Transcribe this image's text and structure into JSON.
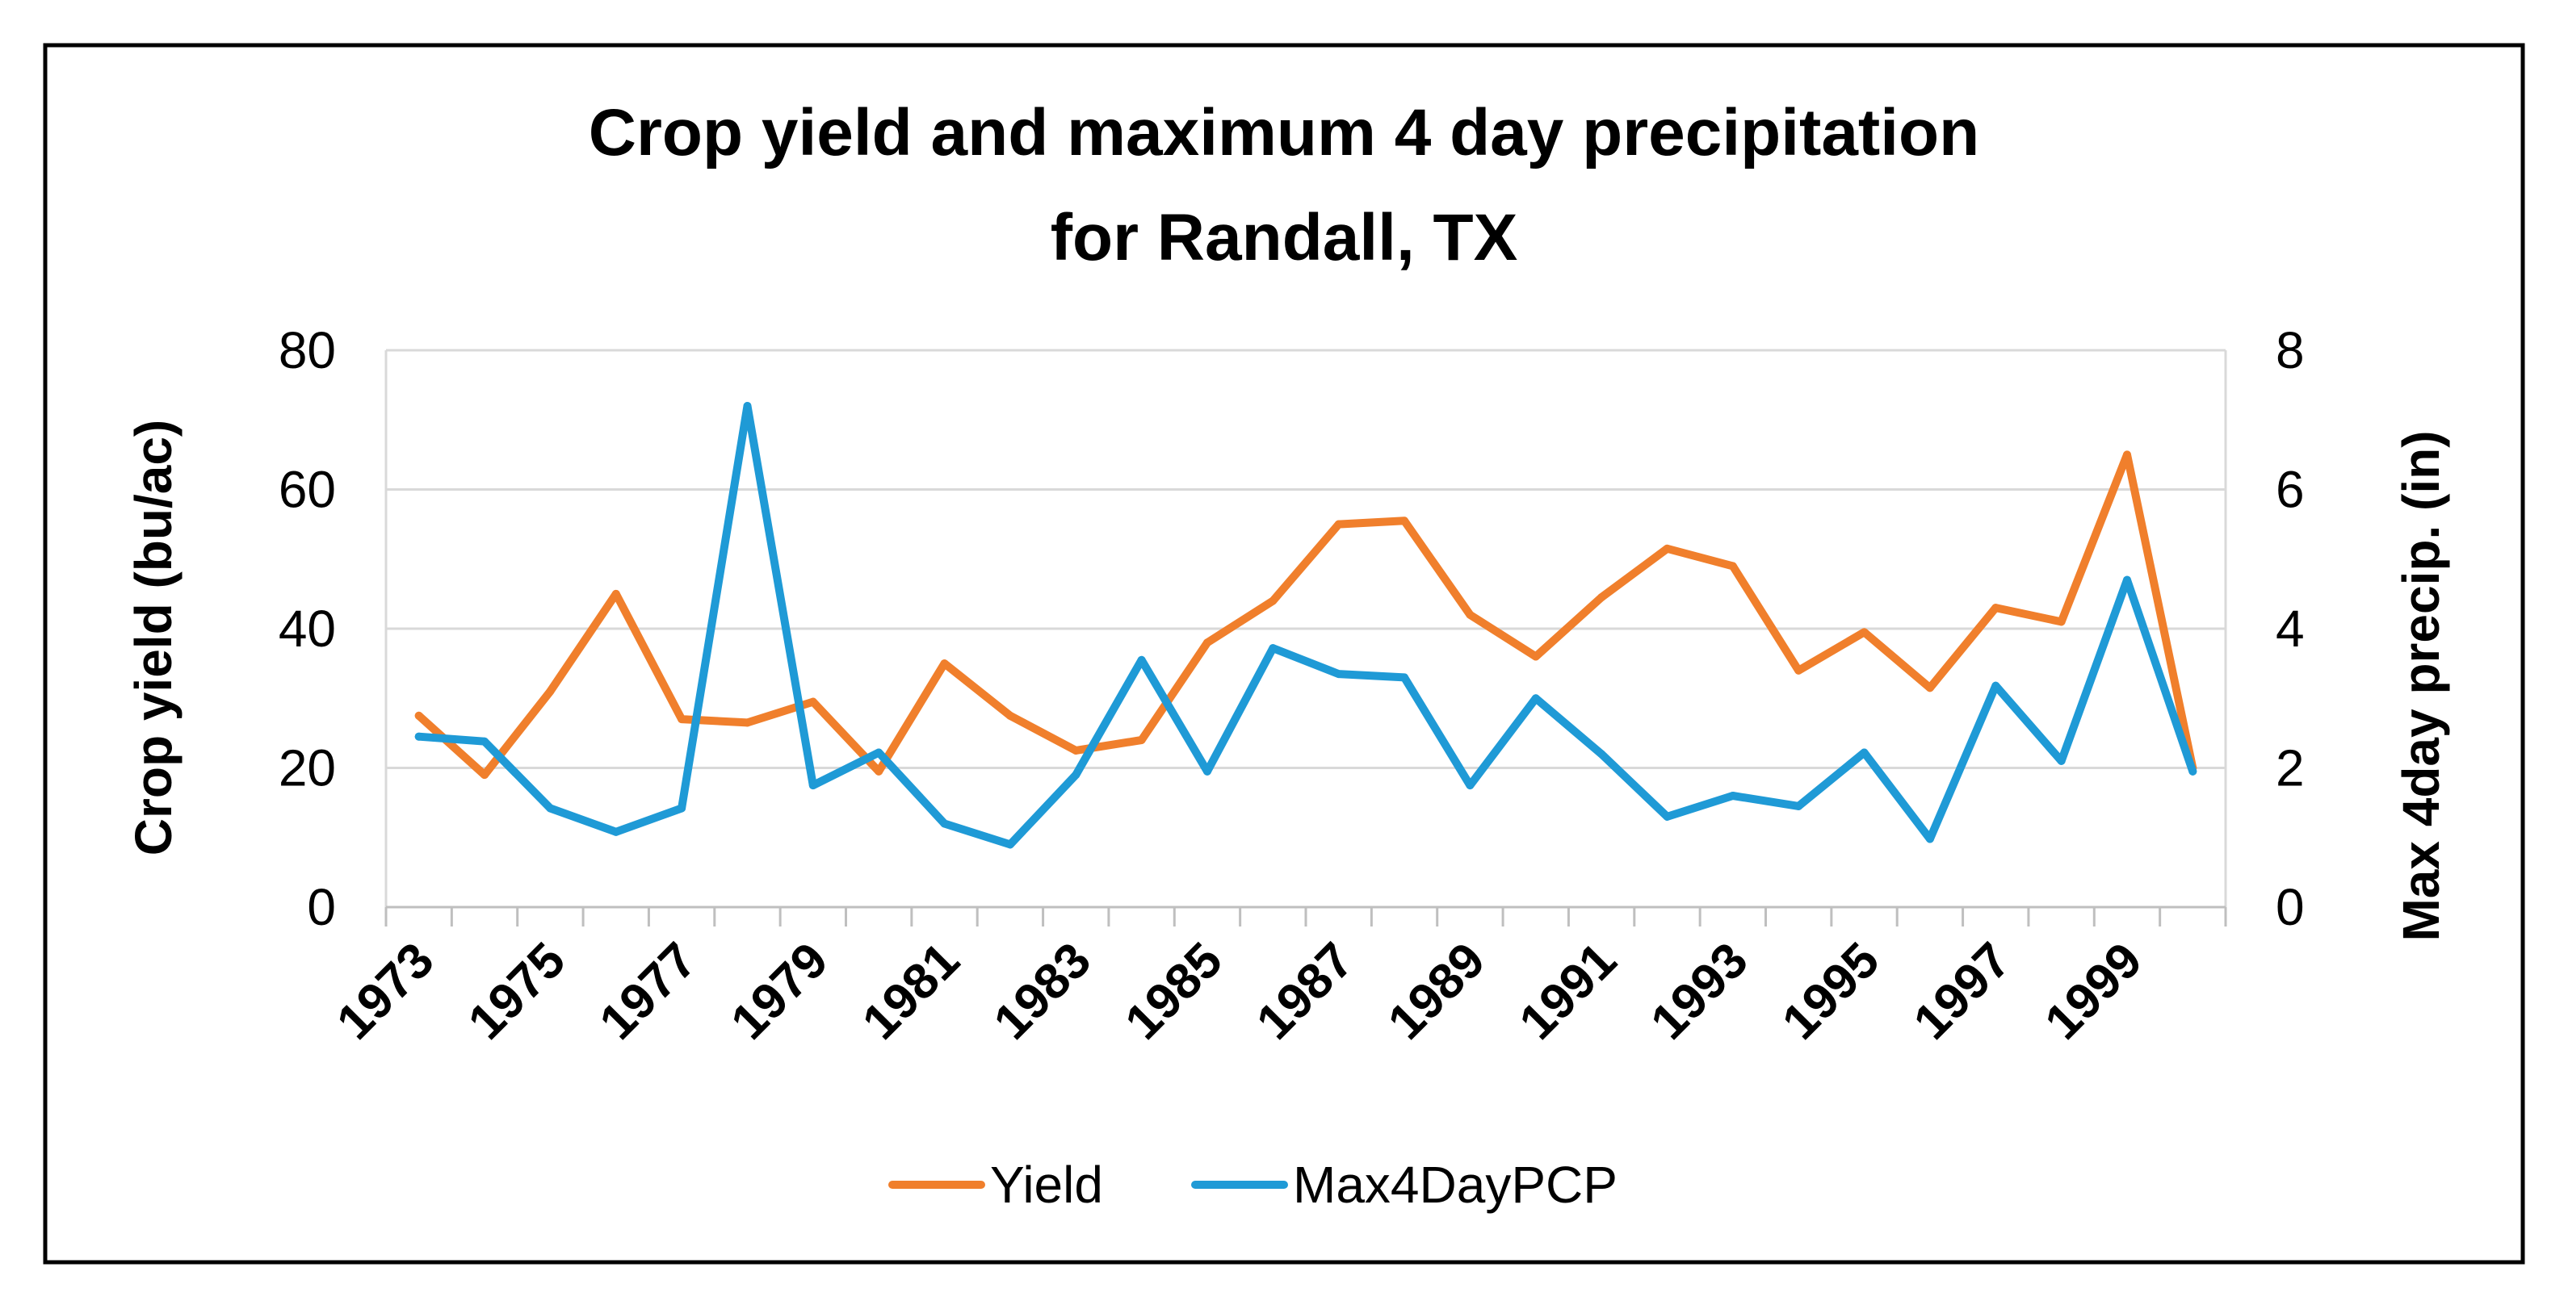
{
  "chart_data": {
    "type": "line",
    "title_lines": [
      "Crop yield and maximum 4 day precipitation",
      "for Randall, TX"
    ],
    "ylabel": "Crop yield (bu/ac)",
    "y2label": "Max 4day precip. (in)",
    "ylim": [
      0,
      80
    ],
    "y2lim": [
      0,
      8
    ],
    "yticks": [
      "0",
      "20",
      "40",
      "60",
      "80"
    ],
    "y2ticks": [
      "0",
      "2",
      "4",
      "6",
      "8"
    ],
    "grid": true,
    "legend_position": "bottom",
    "x": [
      1973,
      1974,
      1975,
      1976,
      1977,
      1978,
      1979,
      1980,
      1981,
      1982,
      1983,
      1984,
      1985,
      1986,
      1987,
      1988,
      1989,
      1990,
      1991,
      1992,
      1993,
      1994,
      1995,
      1996,
      1997,
      1998,
      1999,
      2000
    ],
    "xtick_labels": [
      "1973",
      "1975",
      "1977",
      "1979",
      "1981",
      "1983",
      "1985",
      "1987",
      "1989",
      "1991",
      "1993",
      "1995",
      "1997",
      "1999"
    ],
    "series": [
      {
        "name": "Yield",
        "axis": "left",
        "color": "#F07F2C",
        "values": [
          27.5,
          19,
          31,
          45,
          27,
          26.5,
          29.5,
          19.5,
          35,
          27.5,
          22.5,
          24,
          38,
          44,
          55,
          55.5,
          42,
          36,
          44.5,
          51.5,
          49,
          34,
          39.5,
          31.5,
          43,
          41,
          65,
          20
        ]
      },
      {
        "name": "Max4DayPCP",
        "axis": "right",
        "color": "#1F9AD6",
        "values": [
          2.45,
          2.38,
          1.42,
          1.08,
          1.42,
          7.2,
          1.75,
          2.22,
          1.2,
          0.9,
          1.9,
          3.55,
          1.95,
          3.72,
          3.35,
          3.3,
          1.75,
          3.0,
          2.2,
          1.3,
          1.6,
          1.45,
          2.22,
          0.98,
          3.18,
          2.1,
          4.7,
          1.95
        ]
      }
    ]
  }
}
